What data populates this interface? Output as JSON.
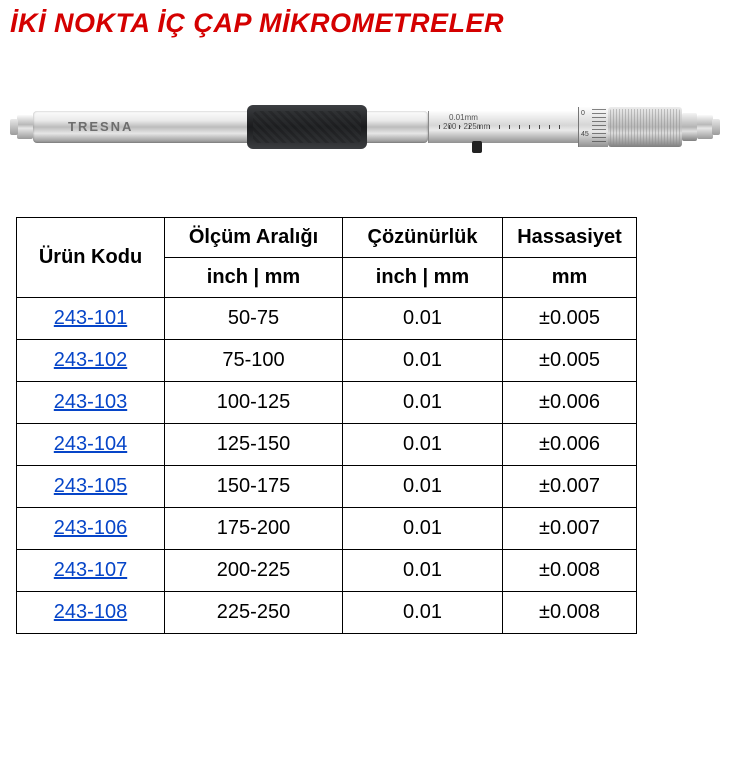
{
  "title": "İKİ NOKTA İÇ ÇAP MİKROMETRELER",
  "image": {
    "brand": "TRESNA",
    "scale_text1": "0.01mm",
    "scale_text2": "200 - 225mm",
    "thimble_marks": [
      "0",
      "45"
    ]
  },
  "table": {
    "headers": {
      "code": "Ürün Kodu",
      "range": "Ölçüm Aralığı",
      "resolution": "Çözünürlük",
      "accuracy": "Hassasiyet"
    },
    "subheaders": {
      "range_unit": "inch | mm",
      "resolution_unit": "inch | mm",
      "accuracy_unit": "mm"
    },
    "rows": [
      {
        "code": "243-101",
        "range": "50-75",
        "resolution": "0.01",
        "accuracy": "±0.005"
      },
      {
        "code": "243-102",
        "range": "75-100",
        "resolution": "0.01",
        "accuracy": "±0.005"
      },
      {
        "code": "243-103",
        "range": "100-125",
        "resolution": "0.01",
        "accuracy": "±0.006"
      },
      {
        "code": "243-104",
        "range": "125-150",
        "resolution": "0.01",
        "accuracy": "±0.006"
      },
      {
        "code": "243-105",
        "range": "150-175",
        "resolution": "0.01",
        "accuracy": "±0.007"
      },
      {
        "code": "243-106",
        "range": "175-200",
        "resolution": "0.01",
        "accuracy": "±0.007"
      },
      {
        "code": "243-107",
        "range": "200-225",
        "resolution": "0.01",
        "accuracy": "±0.008"
      },
      {
        "code": "243-108",
        "range": "225-250",
        "resolution": "0.01",
        "accuracy": "±0.008"
      }
    ]
  },
  "colors": {
    "title": "#d40000",
    "link": "#0645c8",
    "border": "#000000",
    "background": "#ffffff"
  }
}
